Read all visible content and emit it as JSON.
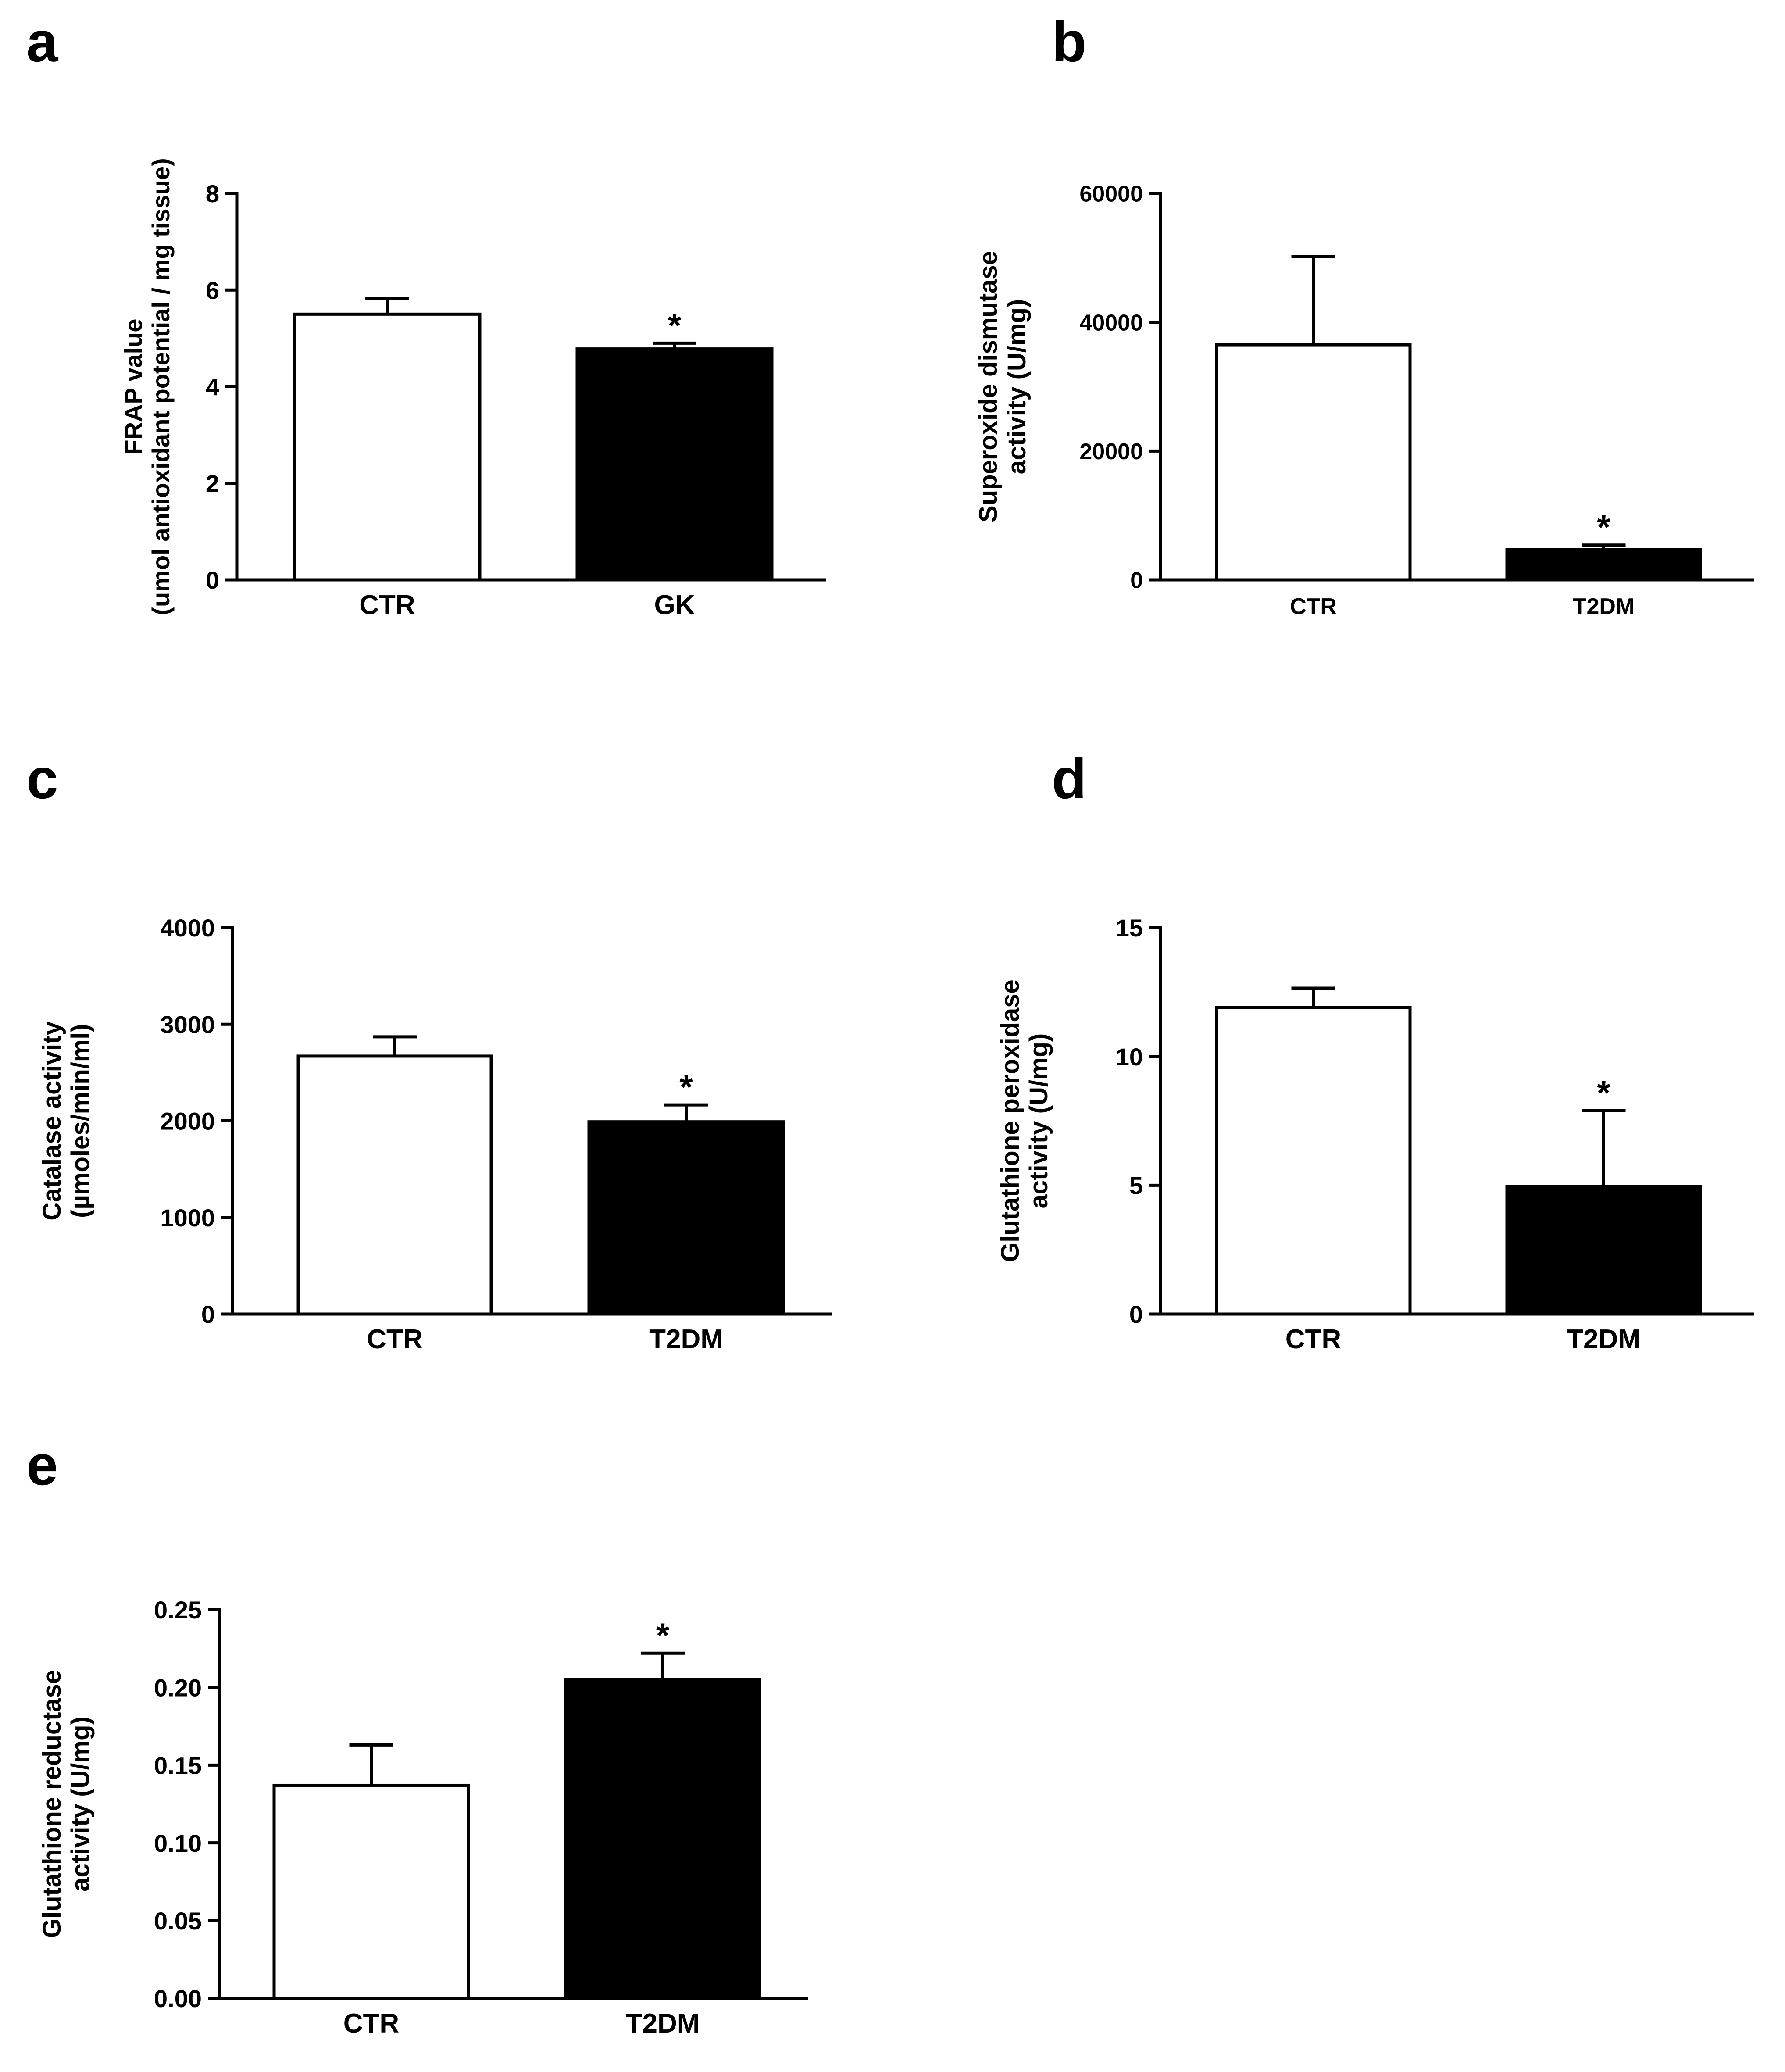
{
  "figure": {
    "colors": {
      "ctr_fill": "#ffffff",
      "disease_fill": "#000000",
      "ink": "#000000",
      "background": "#ffffff"
    }
  },
  "chart_data": [
    {
      "panel": "a",
      "type": "bar",
      "categories": [
        "CTR",
        "GK"
      ],
      "values": [
        5.5,
        4.78
      ],
      "errors": [
        0.32,
        0.12
      ],
      "significance": [
        "",
        "*"
      ],
      "ylabel_lines": [
        "FRAP value",
        "(umol antioxidant potential / mg tissue)"
      ],
      "ylim": [
        0,
        8
      ],
      "yticks": [
        0,
        2,
        4,
        6,
        8
      ],
      "ytick_labels": [
        "0",
        "2",
        "4",
        "6",
        "8"
      ]
    },
    {
      "panel": "b",
      "type": "bar",
      "categories": [
        "CTR",
        "T2DM"
      ],
      "values": [
        36500,
        4700
      ],
      "errors": [
        13700,
        700
      ],
      "significance": [
        "",
        "*"
      ],
      "ylabel_lines": [
        "Superoxide dismutase",
        "activity (U/mg)"
      ],
      "ylim": [
        0,
        60000
      ],
      "yticks": [
        0,
        20000,
        40000,
        60000
      ],
      "ytick_labels": [
        "0",
        "20000",
        "40000",
        "60000"
      ]
    },
    {
      "panel": "c",
      "type": "bar",
      "categories": [
        "CTR",
        "T2DM"
      ],
      "values": [
        2670,
        1990
      ],
      "errors": [
        200,
        175
      ],
      "significance": [
        "",
        "*"
      ],
      "ylabel_lines": [
        "Catalase activity",
        "(µmoles/min/ml)"
      ],
      "ylim": [
        0,
        4000
      ],
      "yticks": [
        0,
        1000,
        2000,
        3000,
        4000
      ],
      "ytick_labels": [
        "0",
        "1000",
        "2000",
        "3000",
        "4000"
      ]
    },
    {
      "panel": "d",
      "type": "bar",
      "categories": [
        "CTR",
        "T2DM"
      ],
      "values": [
        11.9,
        4.95
      ],
      "errors": [
        0.75,
        2.95
      ],
      "significance": [
        "",
        "*"
      ],
      "ylabel_lines": [
        "Glutathione peroxidase",
        "activity (U/mg)"
      ],
      "ylim": [
        0,
        15
      ],
      "yticks": [
        0,
        5,
        10,
        15
      ],
      "ytick_labels": [
        "0",
        "5",
        "10",
        "15"
      ]
    },
    {
      "panel": "e",
      "type": "bar",
      "categories": [
        "CTR",
        "T2DM"
      ],
      "values": [
        0.137,
        0.205
      ],
      "errors": [
        0.026,
        0.017
      ],
      "significance": [
        "",
        "*"
      ],
      "ylabel_lines": [
        "Glutathione reductase",
        "activity (U/mg)"
      ],
      "ylim": [
        0,
        0.25
      ],
      "yticks": [
        0,
        0.05,
        0.1,
        0.15,
        0.2,
        0.25
      ],
      "ytick_labels": [
        "0.00",
        "0.05",
        "0.10",
        "0.15",
        "0.20",
        "0.25"
      ]
    }
  ]
}
